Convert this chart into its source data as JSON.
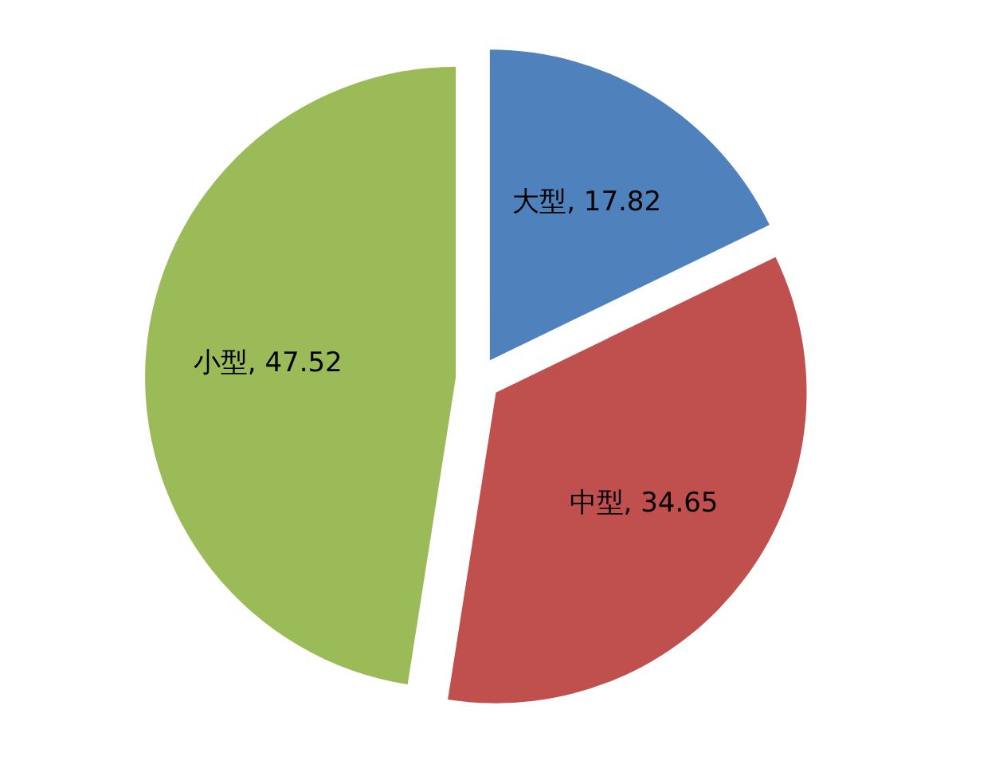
{
  "chart_data": {
    "type": "pie",
    "categories": [
      "大型",
      "中型",
      "小型"
    ],
    "values": [
      17.82,
      34.65,
      47.52
    ],
    "colors": [
      "#4f81bd",
      "#c0504d",
      "#9bbb59"
    ],
    "value_labels": [
      ", 17.82",
      ", 34.65",
      ", 47.52"
    ],
    "legend": false
  }
}
